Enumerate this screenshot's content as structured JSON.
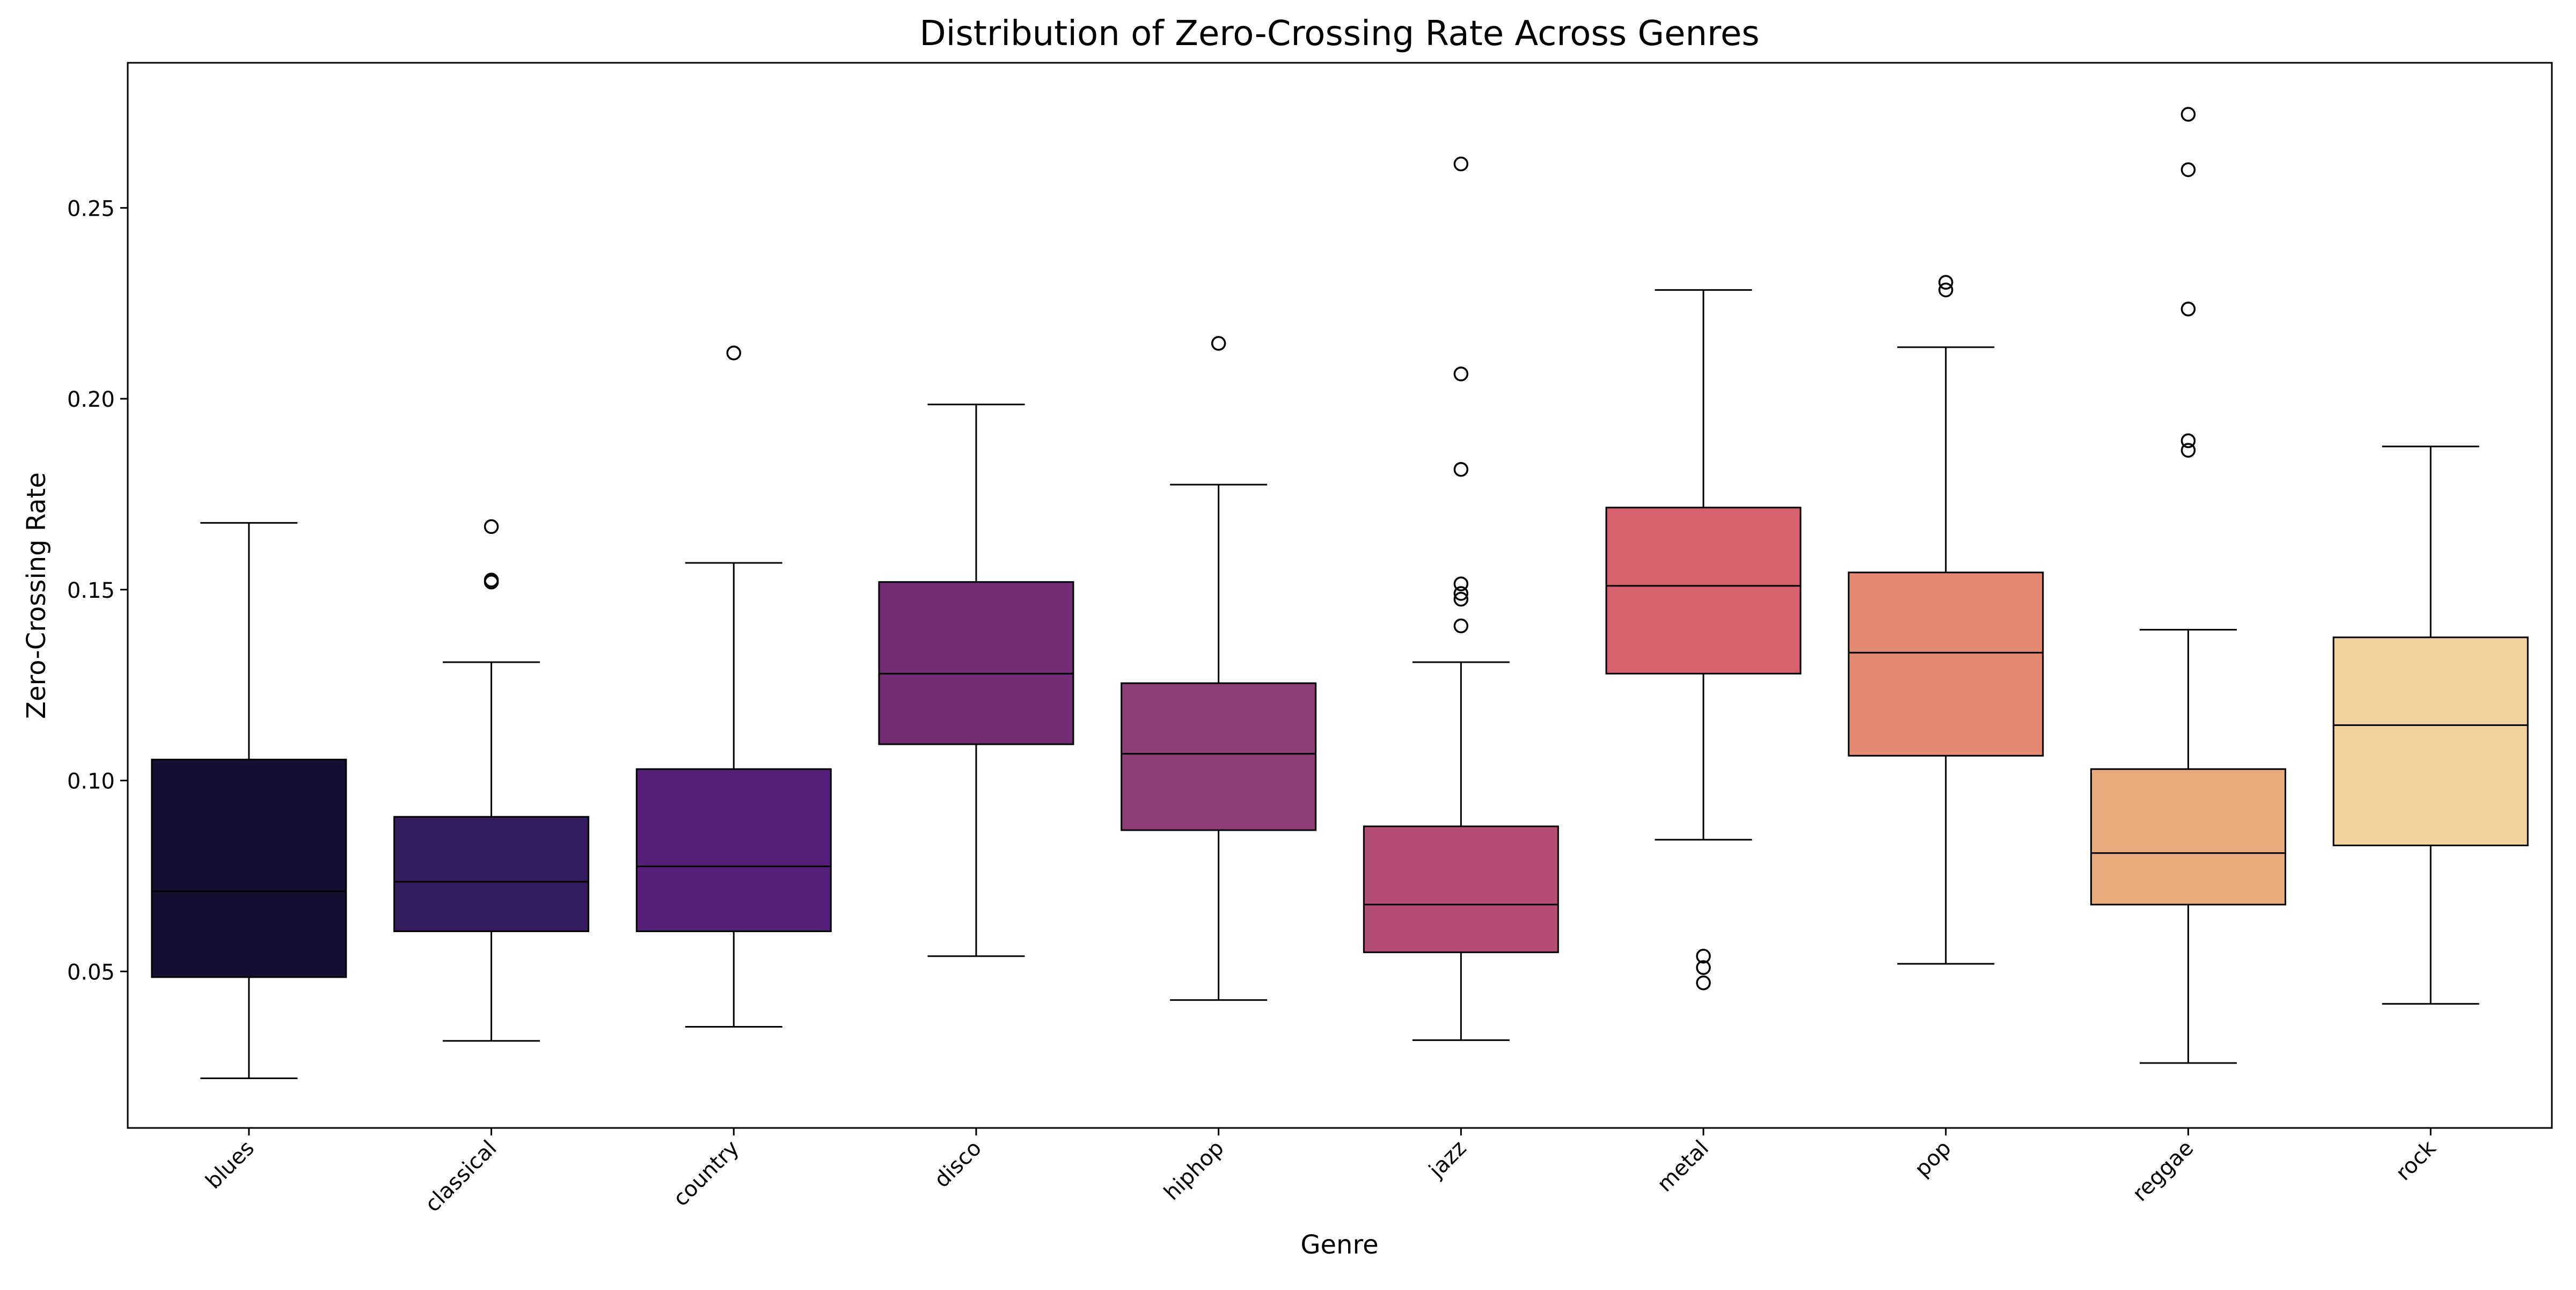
{
  "chart_data": {
    "type": "box",
    "title": "Distribution of Zero-Crossing Rate Across Genres",
    "xlabel": "Genre",
    "ylabel": "Zero-Crossing Rate",
    "ylim": [
      0.009,
      0.288
    ],
    "yticks": [
      0.05,
      0.1,
      0.15,
      0.2,
      0.25
    ],
    "ytick_labels": [
      "0.05",
      "0.10",
      "0.15",
      "0.20",
      "0.25"
    ],
    "grid": false,
    "legend": "none",
    "categories": [
      "blues",
      "classical",
      "country",
      "disco",
      "hiphop",
      "jazz",
      "metal",
      "pop",
      "reggae",
      "rock"
    ],
    "boxes": [
      {
        "genre": "blues",
        "whisker_low": 0.022,
        "q1": 0.0485,
        "median": 0.071,
        "q3": 0.1055,
        "whisker_high": 0.1675,
        "outliers": [],
        "color": "#160f32"
      },
      {
        "genre": "classical",
        "whisker_low": 0.0318,
        "q1": 0.0605,
        "median": 0.0735,
        "q3": 0.0905,
        "whisker_high": 0.131,
        "outliers": [
          0.1665,
          0.1525,
          0.152
        ],
        "color": "#331b5e"
      },
      {
        "genre": "country",
        "whisker_low": 0.0355,
        "q1": 0.0605,
        "median": 0.0775,
        "q3": 0.103,
        "whisker_high": 0.157,
        "outliers": [
          0.212
        ],
        "color": "#542077"
      },
      {
        "genre": "disco",
        "whisker_low": 0.054,
        "q1": 0.1095,
        "median": 0.128,
        "q3": 0.152,
        "whisker_high": 0.1985,
        "outliers": [],
        "color": "#722d75"
      },
      {
        "genre": "hiphop",
        "whisker_low": 0.0425,
        "q1": 0.087,
        "median": 0.107,
        "q3": 0.1255,
        "whisker_high": 0.1775,
        "outliers": [
          0.2145
        ],
        "color": "#903e78"
      },
      {
        "genre": "jazz",
        "whisker_low": 0.032,
        "q1": 0.055,
        "median": 0.0675,
        "q3": 0.088,
        "whisker_high": 0.131,
        "outliers": [
          0.2615,
          0.2065,
          0.1815,
          0.1515,
          0.149,
          0.1475,
          0.1405
        ],
        "color": "#b54e74"
      },
      {
        "genre": "metal",
        "whisker_low": 0.0845,
        "q1": 0.128,
        "median": 0.151,
        "q3": 0.1715,
        "whisker_high": 0.2285,
        "outliers": [
          0.054,
          0.051,
          0.047
        ],
        "color": "#d5616c"
      },
      {
        "genre": "pop",
        "whisker_low": 0.052,
        "q1": 0.1065,
        "median": 0.1335,
        "q3": 0.1545,
        "whisker_high": 0.2135,
        "outliers": [
          0.2305,
          0.2285
        ],
        "color": "#e58a72"
      },
      {
        "genre": "reggae",
        "whisker_low": 0.026,
        "q1": 0.0675,
        "median": 0.081,
        "q3": 0.103,
        "whisker_high": 0.1395,
        "outliers": [
          0.2745,
          0.26,
          0.2235,
          0.189,
          0.1865
        ],
        "color": "#ebab7f"
      },
      {
        "genre": "rock",
        "whisker_low": 0.0415,
        "q1": 0.083,
        "median": 0.1145,
        "q3": 0.1375,
        "whisker_high": 0.1875,
        "outliers": [],
        "color": "#f1d19e"
      }
    ]
  }
}
